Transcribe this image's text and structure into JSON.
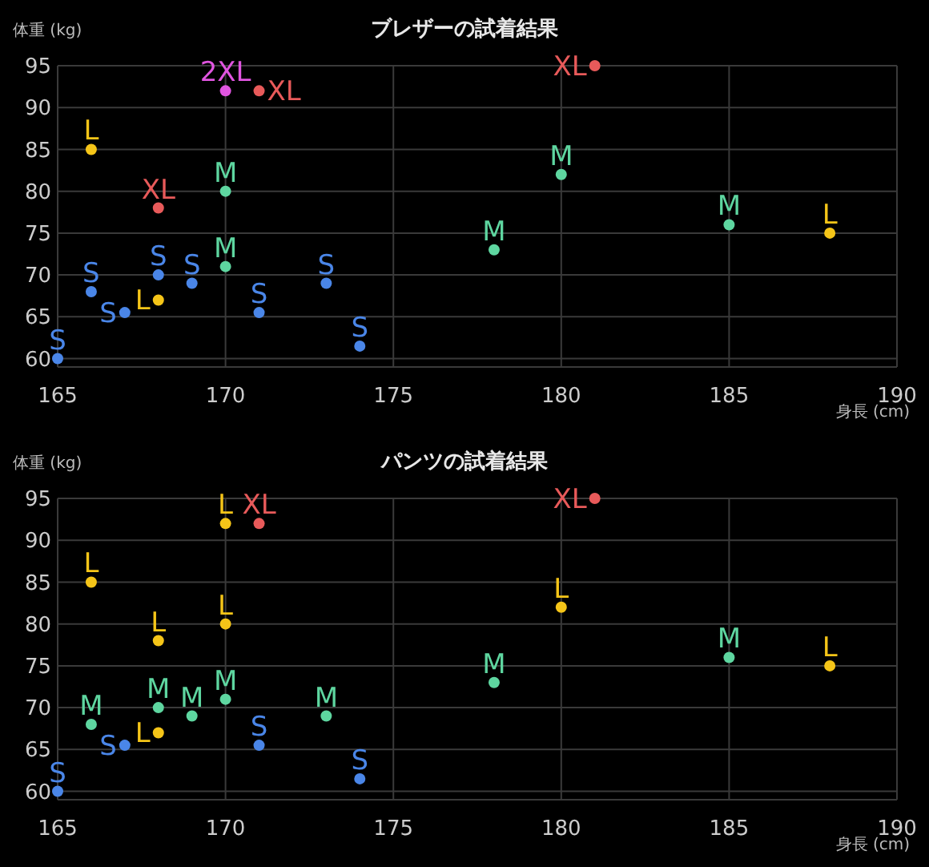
{
  "chart_data": [
    {
      "type": "scatter",
      "title": "ブレザーの試着結果",
      "xlabel": "身長 (cm)",
      "ylabel": "体重 (kg)",
      "xlim": [
        165,
        190
      ],
      "xticks": [
        165,
        170,
        175,
        180,
        185,
        190
      ],
      "ylim": [
        59,
        95
      ],
      "yticks": [
        60,
        65,
        70,
        75,
        80,
        85,
        90,
        95
      ],
      "grid": true,
      "marker": "circle",
      "series": [
        {
          "name": "S",
          "color": "#4a86e8",
          "x": [
            165,
            166,
            167,
            168,
            169,
            171,
            173,
            174
          ],
          "values": [
            60,
            68,
            65.5,
            70,
            69,
            65.5,
            69,
            61.5
          ]
        },
        {
          "name": "M",
          "color": "#5ed6a0",
          "x": [
            170,
            170,
            178,
            180,
            185
          ],
          "values": [
            80,
            71,
            73,
            82,
            76
          ]
        },
        {
          "name": "L",
          "color": "#f5c518",
          "x": [
            166,
            168,
            188
          ],
          "values": [
            85,
            67,
            75
          ]
        },
        {
          "name": "XL",
          "color": "#e85a5a",
          "x": [
            168,
            171,
            181
          ],
          "values": [
            78,
            92,
            95
          ]
        },
        {
          "name": "2XL",
          "color": "#e055e0",
          "x": [
            170
          ],
          "values": [
            92
          ]
        }
      ]
    },
    {
      "type": "scatter",
      "title": "パンツの試着結果",
      "xlabel": "身長 (cm)",
      "ylabel": "体重 (kg)",
      "xlim": [
        165,
        190
      ],
      "xticks": [
        165,
        170,
        175,
        180,
        185,
        190
      ],
      "ylim": [
        59,
        95
      ],
      "yticks": [
        60,
        65,
        70,
        75,
        80,
        85,
        90,
        95
      ],
      "grid": true,
      "marker": "circle",
      "series": [
        {
          "name": "S",
          "color": "#4a86e8",
          "x": [
            165,
            167,
            171,
            174
          ],
          "values": [
            60,
            65.5,
            65.5,
            61.5
          ]
        },
        {
          "name": "M",
          "color": "#5ed6a0",
          "x": [
            166,
            168,
            169,
            170,
            173,
            178,
            185
          ],
          "values": [
            68,
            70,
            69,
            71,
            69,
            73,
            76
          ]
        },
        {
          "name": "L",
          "color": "#f5c518",
          "x": [
            166,
            168,
            168,
            170,
            170,
            180,
            188
          ],
          "values": [
            85,
            78,
            67,
            80,
            92,
            82,
            75
          ]
        },
        {
          "name": "XL",
          "color": "#e85a5a",
          "x": [
            171,
            181
          ],
          "values": [
            92,
            95
          ]
        }
      ]
    }
  ]
}
